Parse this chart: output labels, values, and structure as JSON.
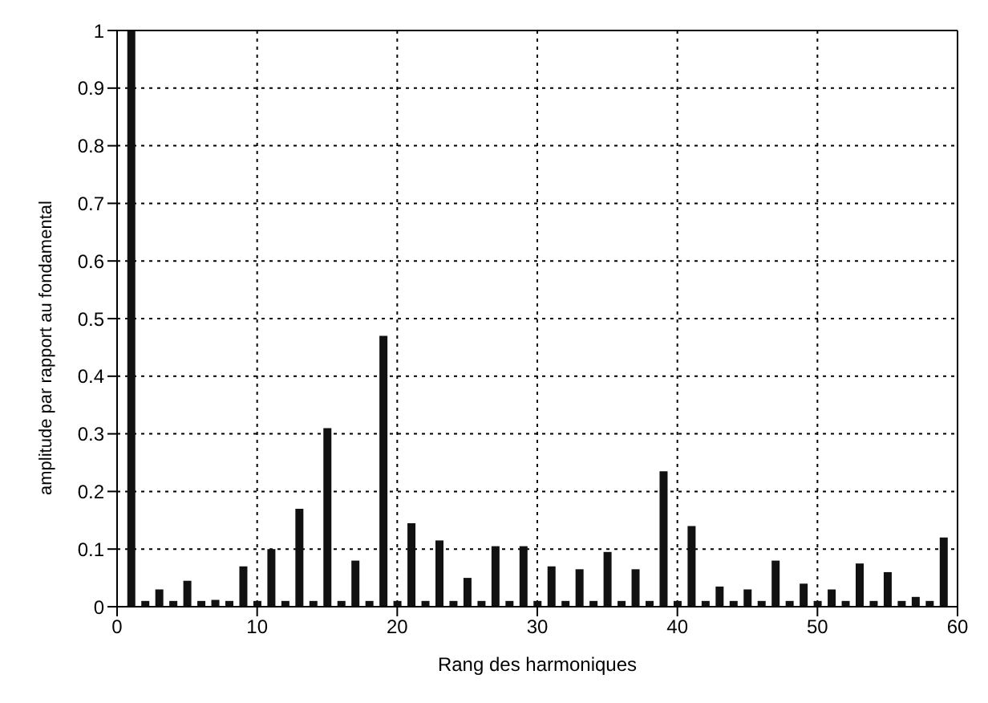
{
  "chart_data": {
    "type": "bar",
    "xlabel": "Rang des harmoniques",
    "ylabel": "amplitude par rapport au fondamental",
    "x": [
      1,
      2,
      3,
      4,
      5,
      6,
      7,
      8,
      9,
      10,
      11,
      12,
      13,
      14,
      15,
      16,
      17,
      18,
      19,
      20,
      21,
      22,
      23,
      24,
      25,
      26,
      27,
      28,
      29,
      30,
      31,
      32,
      33,
      34,
      35,
      36,
      37,
      38,
      39,
      40,
      41,
      42,
      43,
      44,
      45,
      46,
      47,
      48,
      49,
      50,
      51,
      52,
      53,
      54,
      55,
      56,
      57,
      58,
      59
    ],
    "values": [
      1,
      0.01,
      0.03,
      0.01,
      0.045,
      0.01,
      0.012,
      0.01,
      0.07,
      0.01,
      0.1,
      0.01,
      0.17,
      0.01,
      0.31,
      0.01,
      0.08,
      0.01,
      0.47,
      0.01,
      0.145,
      0.01,
      0.115,
      0.01,
      0.05,
      0.01,
      0.105,
      0.01,
      0.105,
      0.01,
      0.07,
      0.01,
      0.065,
      0.01,
      0.095,
      0.01,
      0.065,
      0.01,
      0.235,
      0.01,
      0.14,
      0.01,
      0.035,
      0.01,
      0.03,
      0.01,
      0.08,
      0.01,
      0.04,
      0.01,
      0.03,
      0.01,
      0.075,
      0.01,
      0.06,
      0.01,
      0.017,
      0.01,
      0.12
    ],
    "color": "#111111",
    "xlim": [
      0,
      60
    ],
    "xticks": [
      0,
      10,
      20,
      30,
      40,
      50,
      60
    ],
    "ylim": [
      0,
      1
    ],
    "yticks": [
      0,
      0.1,
      0.2,
      0.3,
      0.4,
      0.5,
      0.6,
      0.7,
      0.8,
      0.9,
      1
    ],
    "grid": true
  }
}
